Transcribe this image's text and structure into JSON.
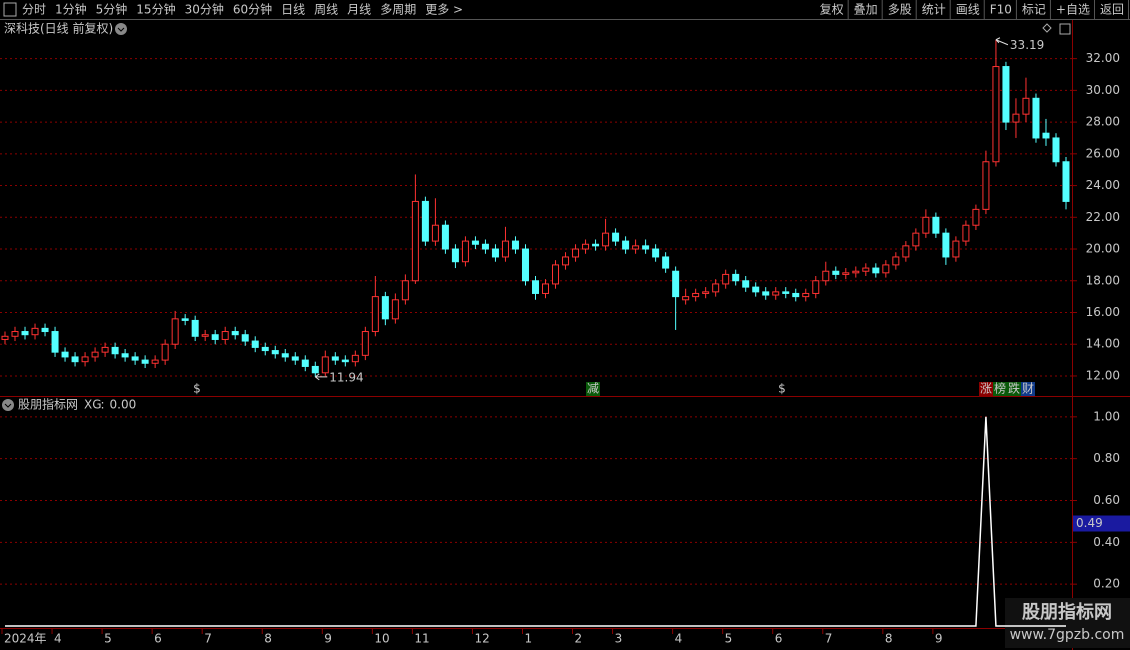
{
  "toolbar": {
    "left": [
      "分时",
      "1分钟",
      "5分钟",
      "15分钟",
      "30分钟",
      "60分钟",
      "日线",
      "周线",
      "月线",
      "多周期",
      "更多 >"
    ],
    "right": [
      "复权",
      "叠加",
      "多股",
      "统计",
      "画线",
      "F10",
      "标记",
      "+自选",
      "返回"
    ]
  },
  "chart_data": [
    {
      "type": "candlestick",
      "title": "深科技(日线 前复权)",
      "categories": [
        "2024年",
        null,
        null,
        null,
        null,
        "4",
        null,
        null,
        null,
        null,
        "5",
        null,
        null,
        null,
        null,
        "6",
        null,
        null,
        null,
        null,
        "7",
        null,
        null,
        null,
        null,
        null,
        "8",
        null,
        null,
        null,
        null,
        null,
        "9",
        null,
        null,
        null,
        null,
        "10",
        null,
        null,
        null,
        "11",
        null,
        null,
        null,
        null,
        null,
        "12",
        null,
        null,
        null,
        null,
        "1",
        null,
        null,
        null,
        null,
        "2",
        null,
        null,
        null,
        "3",
        null,
        null,
        null,
        null,
        null,
        "4",
        null,
        null,
        null,
        null,
        "5",
        null,
        null,
        null,
        null,
        "6",
        null,
        null,
        null,
        null,
        "7",
        null,
        null,
        null,
        null,
        null,
        "8",
        null,
        null,
        null,
        null,
        "9",
        null,
        null,
        null,
        null,
        null,
        null,
        null,
        null,
        null,
        null,
        null,
        null,
        null
      ],
      "ohlc": [
        [
          14.3,
          14.8,
          14.0,
          14.5
        ],
        [
          14.5,
          15.1,
          14.2,
          14.8
        ],
        [
          14.8,
          15.1,
          14.3,
          14.6
        ],
        [
          14.6,
          15.3,
          14.3,
          15.0
        ],
        [
          15.0,
          15.3,
          14.5,
          14.8
        ],
        [
          14.8,
          15.1,
          13.2,
          13.5
        ],
        [
          13.5,
          13.8,
          12.9,
          13.2
        ],
        [
          13.2,
          13.5,
          12.6,
          12.9
        ],
        [
          12.9,
          13.5,
          12.6,
          13.2
        ],
        [
          13.2,
          13.8,
          12.9,
          13.5
        ],
        [
          13.5,
          14.1,
          13.2,
          13.8
        ],
        [
          13.8,
          14.1,
          13.1,
          13.4
        ],
        [
          13.4,
          13.7,
          12.9,
          13.2
        ],
        [
          13.2,
          13.5,
          12.7,
          13.0
        ],
        [
          13.0,
          13.3,
          12.5,
          12.8
        ],
        [
          12.8,
          13.3,
          12.5,
          13.0
        ],
        [
          13.0,
          14.3,
          12.7,
          14.0
        ],
        [
          14.0,
          16.1,
          13.7,
          15.6
        ],
        [
          15.6,
          15.9,
          15.2,
          15.5
        ],
        [
          15.5,
          15.8,
          14.2,
          14.5
        ],
        [
          14.5,
          14.9,
          14.2,
          14.6
        ],
        [
          14.6,
          14.9,
          14.0,
          14.3
        ],
        [
          14.3,
          15.1,
          14.0,
          14.8
        ],
        [
          14.8,
          15.1,
          14.3,
          14.6
        ],
        [
          14.6,
          14.9,
          13.9,
          14.2
        ],
        [
          14.2,
          14.5,
          13.5,
          13.8
        ],
        [
          13.8,
          14.1,
          13.3,
          13.6
        ],
        [
          13.6,
          13.9,
          13.1,
          13.4
        ],
        [
          13.4,
          13.7,
          12.9,
          13.2
        ],
        [
          13.2,
          13.5,
          12.7,
          13.0
        ],
        [
          13.0,
          13.3,
          12.3,
          12.6
        ],
        [
          12.6,
          12.9,
          11.94,
          12.2
        ],
        [
          12.2,
          13.6,
          12.0,
          13.2
        ],
        [
          13.2,
          13.5,
          12.7,
          13.0
        ],
        [
          13.0,
          13.3,
          12.6,
          12.9
        ],
        [
          12.9,
          13.6,
          12.6,
          13.3
        ],
        [
          13.3,
          15.1,
          13.0,
          14.8
        ],
        [
          14.8,
          18.3,
          14.5,
          17.0
        ],
        [
          17.0,
          17.3,
          15.2,
          15.6
        ],
        [
          15.6,
          17.2,
          15.3,
          16.8
        ],
        [
          16.8,
          18.4,
          16.5,
          18.0
        ],
        [
          18.0,
          24.7,
          17.8,
          23.0
        ],
        [
          23.0,
          23.3,
          20.2,
          20.5
        ],
        [
          20.5,
          23.2,
          20.2,
          21.5
        ],
        [
          21.5,
          21.8,
          19.7,
          20.0
        ],
        [
          20.0,
          20.3,
          18.8,
          19.2
        ],
        [
          19.2,
          20.8,
          18.9,
          20.5
        ],
        [
          20.5,
          20.8,
          20.0,
          20.3
        ],
        [
          20.3,
          20.6,
          19.7,
          20.0
        ],
        [
          20.0,
          20.3,
          19.2,
          19.5
        ],
        [
          19.5,
          21.4,
          19.2,
          20.5
        ],
        [
          20.5,
          20.8,
          19.7,
          20.0
        ],
        [
          20.0,
          20.3,
          17.7,
          18.0
        ],
        [
          18.0,
          18.3,
          16.8,
          17.2
        ],
        [
          17.2,
          18.1,
          16.9,
          17.8
        ],
        [
          17.8,
          19.3,
          17.5,
          19.0
        ],
        [
          19.0,
          19.8,
          18.7,
          19.5
        ],
        [
          19.5,
          20.3,
          19.2,
          20.0
        ],
        [
          20.0,
          20.6,
          19.7,
          20.3
        ],
        [
          20.3,
          20.6,
          19.9,
          20.2
        ],
        [
          20.2,
          21.9,
          19.9,
          21.0
        ],
        [
          21.0,
          21.3,
          20.2,
          20.5
        ],
        [
          20.5,
          20.8,
          19.7,
          20.0
        ],
        [
          20.0,
          20.6,
          19.7,
          20.2
        ],
        [
          20.2,
          20.6,
          19.7,
          20.0
        ],
        [
          20.0,
          20.3,
          19.2,
          19.5
        ],
        [
          19.5,
          19.8,
          18.5,
          18.8
        ],
        [
          18.6,
          18.9,
          14.9,
          17.0
        ],
        [
          16.8,
          17.5,
          16.5,
          17.0
        ],
        [
          17.0,
          17.5,
          16.7,
          17.2
        ],
        [
          17.2,
          17.6,
          16.9,
          17.3
        ],
        [
          17.3,
          18.1,
          17.0,
          17.8
        ],
        [
          17.8,
          18.7,
          17.5,
          18.4
        ],
        [
          18.4,
          18.7,
          17.7,
          18.0
        ],
        [
          18.0,
          18.3,
          17.3,
          17.6
        ],
        [
          17.6,
          17.9,
          17.0,
          17.3
        ],
        [
          17.3,
          17.6,
          16.8,
          17.1
        ],
        [
          17.1,
          17.6,
          16.8,
          17.3
        ],
        [
          17.3,
          17.6,
          16.9,
          17.2
        ],
        [
          17.2,
          17.5,
          16.7,
          17.0
        ],
        [
          17.0,
          17.5,
          16.7,
          17.2
        ],
        [
          17.2,
          18.3,
          16.9,
          18.0
        ],
        [
          18.0,
          19.2,
          17.7,
          18.6
        ],
        [
          18.6,
          18.9,
          18.1,
          18.4
        ],
        [
          18.4,
          18.8,
          18.1,
          18.5
        ],
        [
          18.5,
          18.9,
          18.2,
          18.6
        ],
        [
          18.6,
          19.1,
          18.3,
          18.8
        ],
        [
          18.8,
          19.1,
          18.2,
          18.5
        ],
        [
          18.5,
          19.3,
          18.2,
          19.0
        ],
        [
          19.0,
          19.8,
          18.7,
          19.5
        ],
        [
          19.5,
          20.5,
          19.2,
          20.2
        ],
        [
          20.2,
          21.3,
          19.9,
          21.0
        ],
        [
          21.0,
          22.5,
          20.7,
          22.0
        ],
        [
          22.0,
          22.3,
          20.7,
          21.0
        ],
        [
          21.0,
          21.3,
          19.0,
          19.5
        ],
        [
          19.5,
          20.8,
          19.2,
          20.5
        ],
        [
          20.5,
          21.8,
          20.2,
          21.5
        ],
        [
          21.5,
          22.8,
          21.2,
          22.5
        ],
        [
          22.5,
          26.2,
          22.2,
          25.5
        ],
        [
          25.5,
          33.19,
          25.2,
          31.5
        ],
        [
          31.5,
          31.8,
          27.5,
          28.0
        ],
        [
          28.0,
          29.5,
          27.0,
          28.5
        ],
        [
          28.5,
          30.8,
          28.0,
          29.5
        ],
        [
          29.5,
          29.8,
          26.7,
          27.0
        ],
        [
          27.3,
          28.2,
          26.5,
          27.0
        ],
        [
          27.0,
          27.3,
          25.2,
          25.5
        ],
        [
          25.5,
          25.8,
          22.5,
          23.0
        ]
      ],
      "ylim": [
        10.8,
        33.3
      ],
      "yticks": [
        {
          "value": 12,
          "label": "12.00"
        },
        {
          "value": 14,
          "label": "14.00"
        },
        {
          "value": 16,
          "label": "16.00"
        },
        {
          "value": 18,
          "label": "18.00"
        },
        {
          "value": 20,
          "label": "20.00"
        },
        {
          "value": 22,
          "label": "22.00"
        },
        {
          "value": 24,
          "label": "24.00"
        },
        {
          "value": 26,
          "label": "26.00"
        },
        {
          "value": 28,
          "label": "28.00"
        },
        {
          "value": 30,
          "label": "30.00"
        },
        {
          "value": 32,
          "label": "32.00"
        }
      ],
      "grid": true,
      "up_color": "#ff3232",
      "down_color": "#54ffff",
      "event_marks": [
        "$",
        "减",
        "$",
        "涨",
        "榜",
        "跌",
        "财"
      ]
    },
    {
      "type": "line",
      "title": "股朋指标网",
      "series": [
        {
          "name": "XG",
          "color": "#ffffff",
          "value_label": "0.00",
          "values": [
            0,
            0,
            0,
            0,
            0,
            0,
            0,
            0,
            0,
            0,
            0,
            0,
            0,
            0,
            0,
            0,
            0,
            0,
            0,
            0,
            0,
            0,
            0,
            0,
            0,
            0,
            0,
            0,
            0,
            0,
            0,
            0,
            0,
            0,
            0,
            0,
            0,
            0,
            0,
            0,
            0,
            0,
            0,
            0,
            0,
            0,
            0,
            0,
            0,
            0,
            0,
            0,
            0,
            0,
            0,
            0,
            0,
            0,
            0,
            0,
            0,
            0,
            0,
            0,
            0,
            0,
            0,
            0,
            0,
            0,
            0,
            0,
            0,
            0,
            0,
            0,
            0,
            0,
            0,
            0,
            0,
            0,
            0,
            0,
            0,
            0,
            0,
            0,
            0,
            0,
            0,
            0,
            0,
            0,
            0,
            0,
            0,
            0,
            1,
            0,
            0,
            0,
            0,
            0,
            0,
            0,
            0
          ]
        }
      ],
      "ylim": [
        0,
        1.09
      ],
      "yticks": [
        {
          "value": 0.2,
          "label": "0.20"
        },
        {
          "value": 0.4,
          "label": "0.40"
        },
        {
          "value": 0.6,
          "label": "0.60"
        },
        {
          "value": 0.8,
          "label": "0.80"
        },
        {
          "value": 1,
          "label": "1.00"
        }
      ],
      "grid": true,
      "cursor_value": 0.49
    }
  ],
  "watermark": {
    "title": "股朋指标网",
    "url": "www.7gpzb.com"
  }
}
